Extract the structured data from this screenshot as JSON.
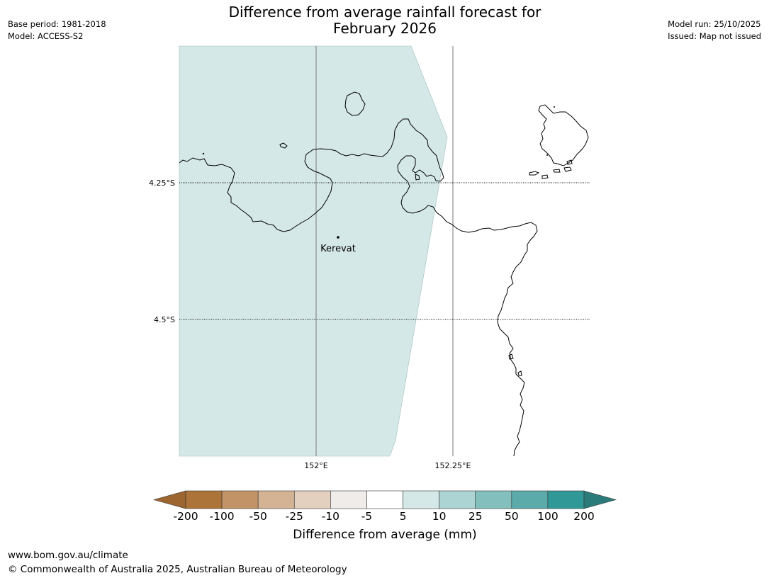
{
  "header": {
    "base_period": "Base period: 1981-2018",
    "model": "Model: ACCESS-S2",
    "title_line1": "Difference from average rainfall forecast for",
    "title_line2": "February 2026",
    "model_run": "Model run: 25/10/2025",
    "issued": "Issued: Map not issued"
  },
  "map": {
    "lat_labels": [
      "4.25°S",
      "4.5°S"
    ],
    "lon_labels": [
      "152°E",
      "152.25°E"
    ],
    "place": "Kerevat",
    "shaded_category_color": "#d4e8e7",
    "coast_color": "#000000"
  },
  "colorbar": {
    "label": "Difference from average (mm)",
    "ticks": [
      "-200",
      "-100",
      "-50",
      "-25",
      "-10",
      "-5",
      "5",
      "10",
      "25",
      "50",
      "100",
      "200"
    ],
    "colors": [
      "#9d6630",
      "#ad743a",
      "#c29366",
      "#d4b394",
      "#e4d0bf",
      "#efecea",
      "#ffffff",
      "#d4e8e7",
      "#acd4d3",
      "#83c0bd",
      "#5aaba9",
      "#309896",
      "#2a7b7a"
    ]
  },
  "footer": {
    "url": "www.bom.gov.au/climate",
    "copyright": "© Commonwealth of Australia 2025, Australian Bureau of Meteorology"
  }
}
